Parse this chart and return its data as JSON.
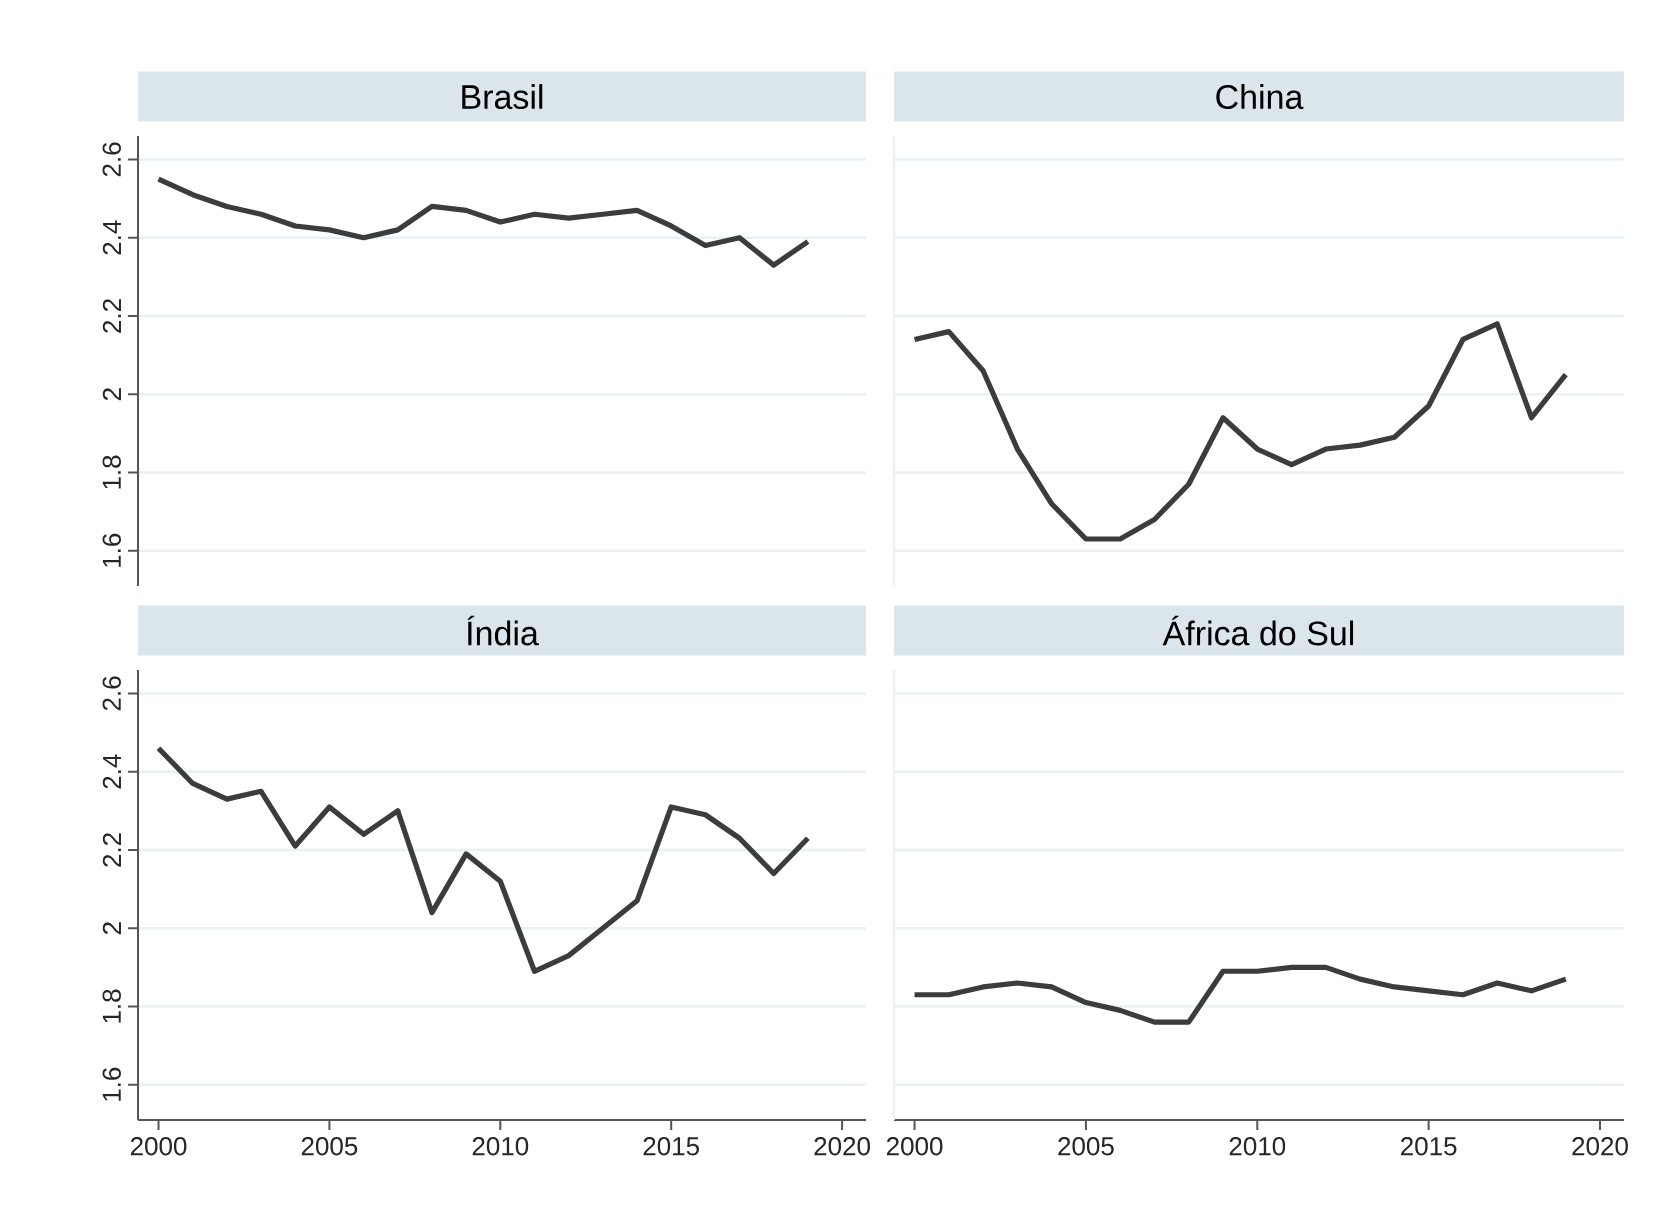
{
  "chart_data": [
    {
      "type": "line",
      "title": "Brasil",
      "color": "#3c3c3c",
      "grid": "y",
      "tick_labels": "y",
      "xlim": [
        1999.4,
        2020.7
      ],
      "ylim": [
        1.51,
        2.66
      ],
      "xticks": [
        2000,
        2005,
        2010,
        2015,
        2020
      ],
      "yticks": [
        1.6,
        1.8,
        2,
        2.2,
        2.4,
        2.6
      ],
      "x": [
        2000,
        2001,
        2002,
        2003,
        2004,
        2005,
        2006,
        2007,
        2008,
        2009,
        2010,
        2011,
        2012,
        2013,
        2014,
        2015,
        2016,
        2017,
        2018,
        2019
      ],
      "values": [
        2.55,
        2.51,
        2.48,
        2.46,
        2.43,
        2.42,
        2.4,
        2.42,
        2.48,
        2.47,
        2.44,
        2.46,
        2.45,
        2.46,
        2.47,
        2.43,
        2.38,
        2.4,
        2.33,
        2.39
      ]
    },
    {
      "type": "line",
      "title": "China",
      "color": "#3c3c3c",
      "grid": "y",
      "tick_labels": false,
      "xlim": [
        1999.4,
        2020.7
      ],
      "ylim": [
        1.51,
        2.66
      ],
      "xticks": [
        2000,
        2005,
        2010,
        2015,
        2020
      ],
      "yticks": [
        1.6,
        1.8,
        2,
        2.2,
        2.4,
        2.6
      ],
      "x": [
        2000,
        2001,
        2002,
        2003,
        2004,
        2005,
        2006,
        2007,
        2008,
        2009,
        2010,
        2011,
        2012,
        2013,
        2014,
        2015,
        2016,
        2017,
        2018,
        2019
      ],
      "values": [
        2.14,
        2.16,
        2.06,
        1.86,
        1.72,
        1.63,
        1.63,
        1.68,
        1.77,
        1.94,
        1.86,
        1.82,
        1.86,
        1.87,
        1.89,
        1.97,
        2.14,
        2.18,
        1.94,
        2.05
      ]
    },
    {
      "type": "line",
      "title": "Índia",
      "color": "#3c3c3c",
      "grid": "y",
      "xlim": [
        1999.4,
        2020.7
      ],
      "ylim": [
        1.51,
        2.66
      ],
      "xticks": [
        2000,
        2005,
        2010,
        2015,
        2020
      ],
      "yticks": [
        1.6,
        1.8,
        2,
        2.2,
        2.4,
        2.6
      ],
      "x": [
        2000,
        2001,
        2002,
        2003,
        2004,
        2005,
        2006,
        2007,
        2008,
        2009,
        2010,
        2011,
        2012,
        2013,
        2014,
        2015,
        2016,
        2017,
        2018,
        2019
      ],
      "values": [
        2.46,
        2.37,
        2.33,
        2.35,
        2.21,
        2.31,
        2.24,
        2.3,
        2.04,
        2.19,
        2.12,
        1.89,
        1.93,
        2.0,
        2.07,
        2.31,
        2.29,
        2.23,
        2.14,
        2.23
      ]
    },
    {
      "type": "line",
      "title": "África do Sul",
      "color": "#3c3c3c",
      "grid": "y",
      "tick_labels": "x",
      "xlim": [
        1999.4,
        2020.7
      ],
      "ylim": [
        1.51,
        2.66
      ],
      "xticks": [
        2000,
        2005,
        2010,
        2015,
        2020
      ],
      "yticks": [
        1.6,
        1.8,
        2,
        2.2,
        2.4,
        2.6
      ],
      "x": [
        2000,
        2001,
        2002,
        2003,
        2004,
        2005,
        2006,
        2007,
        2008,
        2009,
        2010,
        2011,
        2012,
        2013,
        2014,
        2015,
        2016,
        2017,
        2018,
        2019
      ],
      "values": [
        1.83,
        1.83,
        1.85,
        1.86,
        1.85,
        1.81,
        1.79,
        1.76,
        1.76,
        1.89,
        1.89,
        1.9,
        1.9,
        1.87,
        1.85,
        1.84,
        1.83,
        1.86,
        1.84,
        1.87
      ]
    }
  ]
}
